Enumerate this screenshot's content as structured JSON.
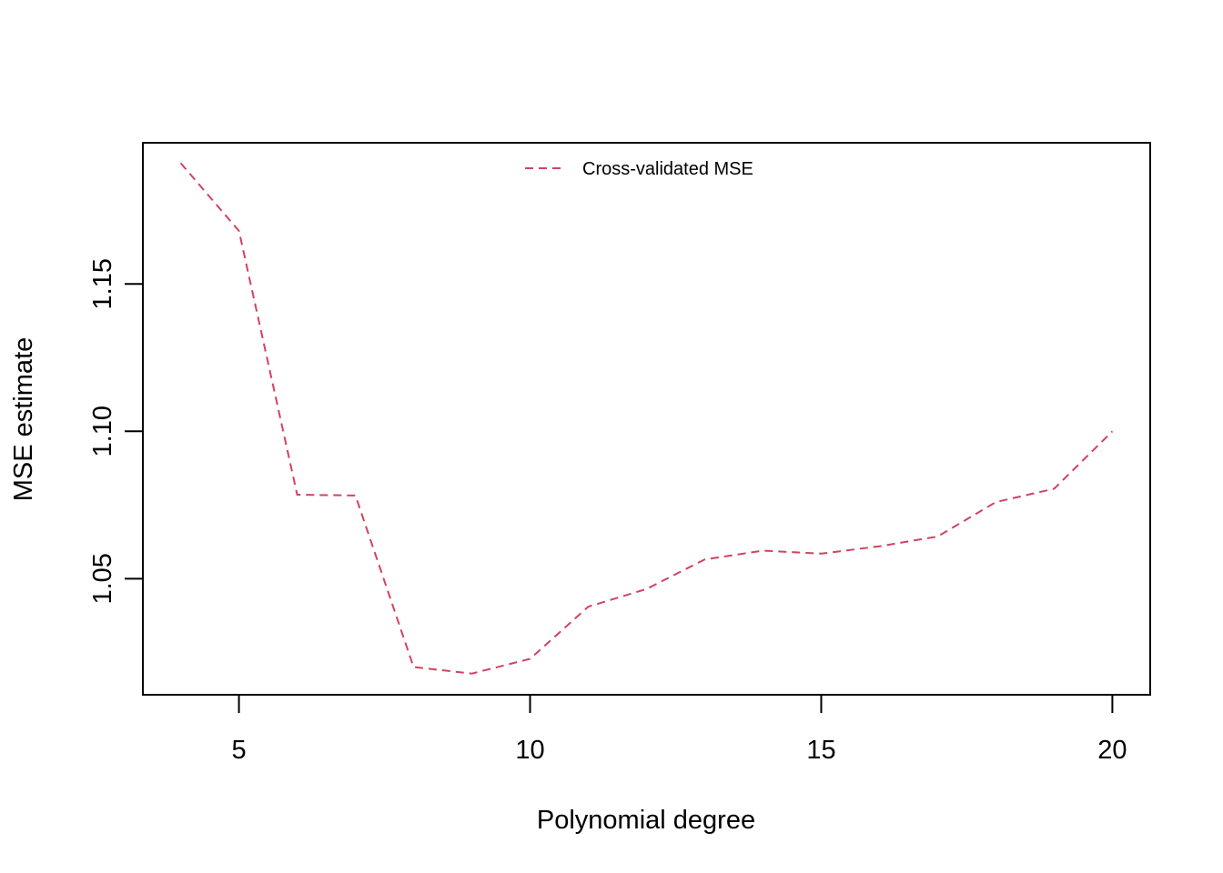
{
  "chart_data": {
    "type": "line",
    "title": "",
    "xlabel": "Polynomial degree",
    "ylabel": "MSE estimate",
    "xlim": [
      3.35,
      20.65
    ],
    "ylim": [
      1.0106,
      1.1979
    ],
    "x_ticks": [
      5,
      10,
      15,
      20
    ],
    "y_ticks": [
      1.05,
      1.1,
      1.15
    ],
    "y_tick_labels": [
      "1.05",
      "1.10",
      "1.15"
    ],
    "grid": false,
    "legend_position": "top-center",
    "series": [
      {
        "name": "Cross-validated MSE",
        "color": "#d1425f",
        "line_style": "dashed",
        "x": [
          4,
          5,
          6,
          7,
          8,
          9,
          10,
          11,
          12,
          13,
          14,
          15,
          16,
          17,
          18,
          19,
          20
        ],
        "y": [
          1.191,
          1.168,
          1.0785,
          1.0782,
          1.02,
          1.0178,
          1.0228,
          1.0405,
          1.0465,
          1.0565,
          1.0595,
          1.0585,
          1.061,
          1.0643,
          1.076,
          1.0805,
          1.1
        ]
      }
    ]
  }
}
